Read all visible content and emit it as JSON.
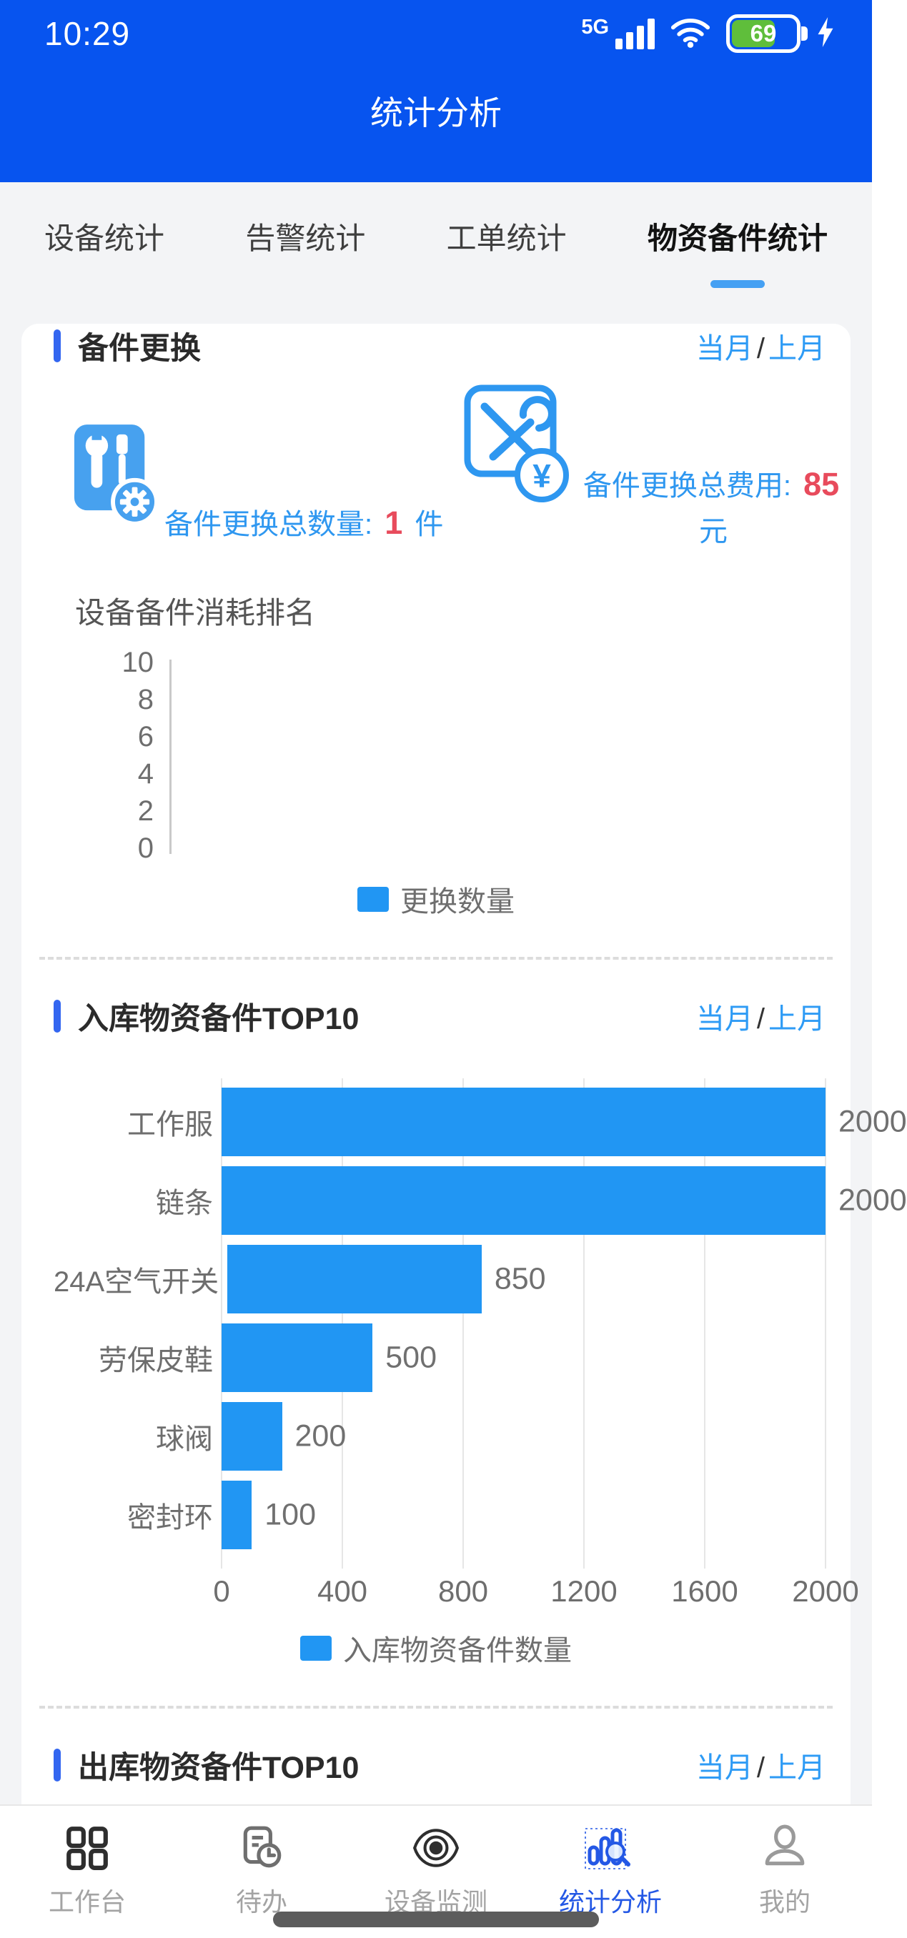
{
  "colors": {
    "header_bg": "#0754EF",
    "accent_pill": "#3366F0",
    "link_blue": "#2E9BF5",
    "bar_blue": "#2196F3",
    "value_red": "#E84B5C",
    "battery_green": "#5FBE3B",
    "active_nav": "#2458E5"
  },
  "status_bar": {
    "time": "10:29",
    "network_label": "5G",
    "battery_percent": "69"
  },
  "header": {
    "title": "统计分析"
  },
  "tabs": [
    {
      "label": "设备统计",
      "active": false
    },
    {
      "label": "告警统计",
      "active": false
    },
    {
      "label": "工单统计",
      "active": false
    },
    {
      "label": "物资备件统计",
      "active": true
    }
  ],
  "period_links": {
    "current": "当月",
    "separator": "/",
    "previous": "上月"
  },
  "replacement": {
    "section_title": "备件更换",
    "count_label": "备件更换总数量:",
    "count_value": "1",
    "count_unit": "件",
    "cost_label": "备件更换总费用:",
    "cost_value": "85",
    "cost_unit": "元",
    "ranking_title": "设备备件消耗排名"
  },
  "inbound": {
    "section_title": "入库物资备件TOP10"
  },
  "outbound": {
    "section_title": "出库物资备件TOP10"
  },
  "chart_data": [
    {
      "type": "bar",
      "orientation": "vertical",
      "title": "设备备件消耗排名",
      "categories": [],
      "series": [
        {
          "name": "更换数量",
          "values": []
        }
      ],
      "ylim": [
        0,
        10
      ],
      "y_ticks": [
        10,
        8,
        6,
        4,
        2,
        0
      ],
      "legend": [
        "更换数量"
      ],
      "legend_position": "bottom",
      "grid": false,
      "note": "no data plotted"
    },
    {
      "type": "bar",
      "orientation": "horizontal",
      "title": "入库物资备件TOP10",
      "categories": [
        "工作服",
        "链条",
        "24A空气开关",
        "劳保皮鞋",
        "球阀",
        "密封环"
      ],
      "values": [
        2000,
        2000,
        850,
        500,
        200,
        100
      ],
      "xlim": [
        0,
        2000
      ],
      "x_ticks": [
        0,
        400,
        800,
        1200,
        1600,
        2000
      ],
      "legend": [
        "入库物资备件数量"
      ],
      "legend_position": "bottom",
      "grid": true
    }
  ],
  "tabbar": [
    {
      "label": "工作台",
      "active": false
    },
    {
      "label": "待办",
      "active": false
    },
    {
      "label": "设备监测",
      "active": false
    },
    {
      "label": "统计分析",
      "active": true
    },
    {
      "label": "我的",
      "active": false
    }
  ]
}
